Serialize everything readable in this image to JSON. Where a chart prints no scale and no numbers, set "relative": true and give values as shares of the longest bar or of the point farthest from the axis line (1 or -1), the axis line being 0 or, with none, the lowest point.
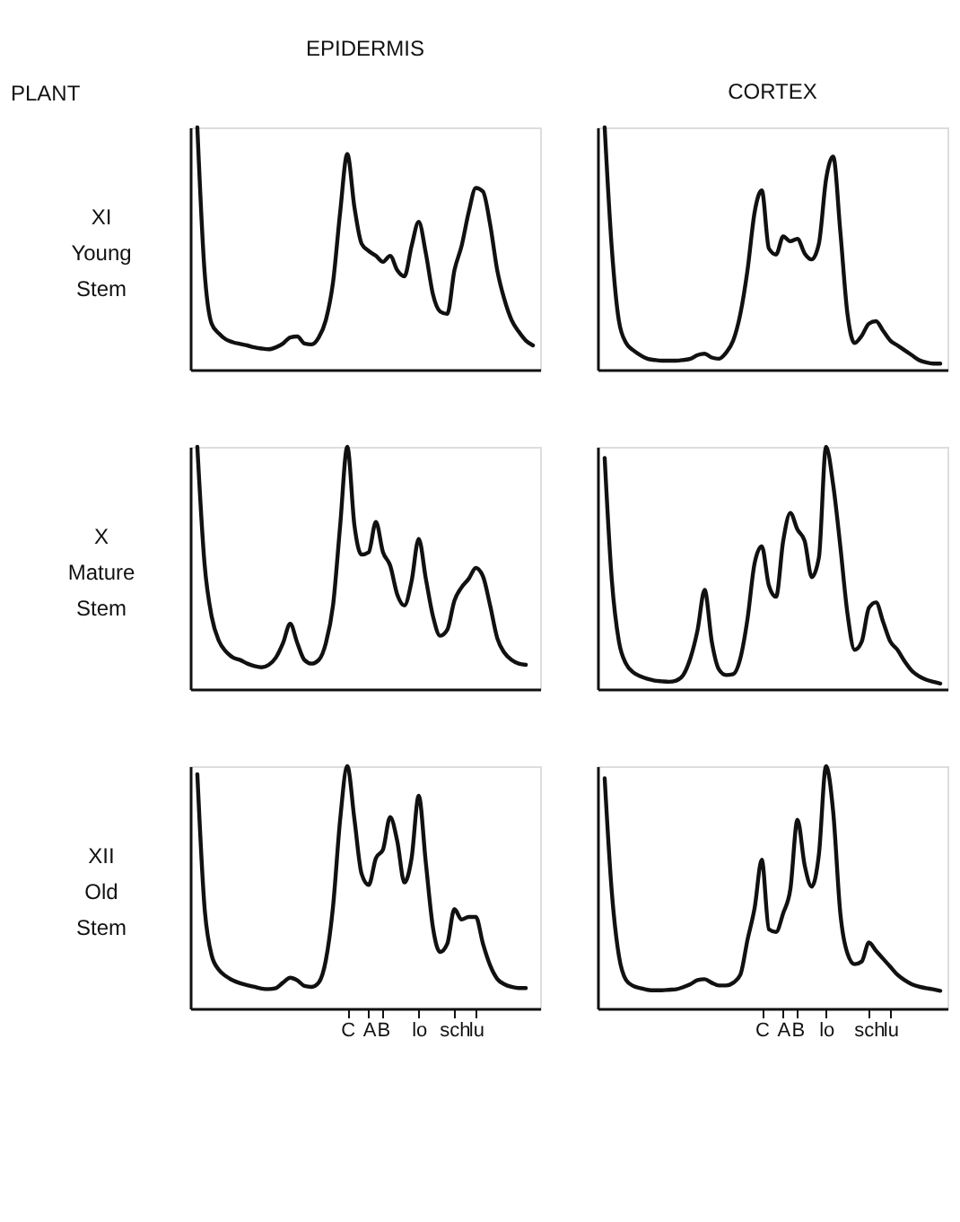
{
  "chart_data": [
    {
      "type": "line",
      "title": "EPIDERMIS",
      "ylabel": "XI\nYoung\nStem",
      "annotations": [
        "PLANT"
      ],
      "relative": true,
      "tick_labels": false,
      "categories": [
        null,
        null,
        null,
        null,
        null,
        null,
        null,
        null,
        null,
        null,
        null,
        null,
        null,
        null,
        null,
        null,
        null,
        null,
        null,
        null,
        null,
        null,
        null,
        null,
        null,
        null,
        null,
        null,
        null,
        null,
        null,
        null,
        null,
        null,
        null,
        null,
        null,
        null,
        null,
        null,
        null,
        null,
        null,
        null,
        null,
        null,
        null,
        null,
        null,
        null
      ],
      "series": [
        {
          "color": "#111111",
          "values": [
            null,
            1.0,
            0.41,
            0.19,
            0.15,
            0.125,
            0.113,
            0.106,
            0.1,
            0.092,
            0.087,
            0.084,
            0.092,
            0.108,
            0.133,
            0.137,
            0.108,
            0.104,
            0.133,
            0.205,
            0.36,
            0.65,
            0.89,
            0.67,
            0.52,
            0.49,
            0.47,
            0.445,
            0.47,
            0.41,
            0.385,
            0.51,
            0.61,
            0.48,
            0.31,
            0.24,
            0.23,
            0.41,
            0.51,
            0.65,
            0.75,
            0.735,
            0.6,
            0.41,
            0.29,
            0.205,
            0.157,
            0.12,
            0.1,
            null
          ]
        }
      ]
    },
    {
      "type": "line",
      "title": "CORTEX",
      "relative": true,
      "tick_labels": false,
      "categories": [
        null,
        null,
        null,
        null,
        null,
        null,
        null,
        null,
        null,
        null,
        null,
        null,
        null,
        null,
        null,
        null,
        null,
        null,
        null,
        null,
        null,
        null,
        null,
        null,
        null,
        null,
        null,
        null,
        null,
        null,
        null,
        null,
        null,
        null,
        null,
        null,
        null,
        null,
        null,
        null,
        null,
        null,
        null,
        null,
        null,
        null,
        null,
        null,
        null,
        null
      ],
      "series": [
        {
          "color": "#111111",
          "values": [
            null,
            1.0,
            0.5,
            0.2,
            0.11,
            0.08,
            0.06,
            0.045,
            0.04,
            0.037,
            0.037,
            0.037,
            0.04,
            0.045,
            0.06,
            0.066,
            0.05,
            0.045,
            0.07,
            0.12,
            0.23,
            0.41,
            0.65,
            0.74,
            0.5,
            0.475,
            0.55,
            0.53,
            0.54,
            0.48,
            0.455,
            0.52,
            0.785,
            0.88,
            0.57,
            0.23,
            0.11,
            0.14,
            0.19,
            0.2,
            0.16,
            0.12,
            0.1,
            0.08,
            0.06,
            0.04,
            0.03,
            0.025,
            0.025,
            null
          ]
        }
      ]
    },
    {
      "type": "line",
      "ylabel": "X\nMature\nStem",
      "relative": true,
      "tick_labels": false,
      "categories": [
        null,
        null,
        null,
        null,
        null,
        null,
        null,
        null,
        null,
        null,
        null,
        null,
        null,
        null,
        null,
        null,
        null,
        null,
        null,
        null,
        null,
        null,
        null,
        null,
        null,
        null,
        null,
        null,
        null,
        null,
        null,
        null,
        null,
        null,
        null,
        null,
        null,
        null,
        null,
        null,
        null,
        null,
        null,
        null,
        null,
        null,
        null,
        null,
        null,
        null
      ],
      "series": [
        {
          "color": "#111111",
          "values": [
            null,
            1.0,
            0.52,
            0.3,
            0.2,
            0.155,
            0.13,
            0.12,
            0.105,
            0.095,
            0.09,
            0.1,
            0.13,
            0.19,
            0.27,
            0.19,
            0.12,
            0.105,
            0.12,
            0.19,
            0.345,
            0.675,
            1.0,
            0.675,
            0.555,
            0.565,
            0.69,
            0.565,
            0.51,
            0.39,
            0.345,
            0.445,
            0.62,
            0.455,
            0.3,
            0.22,
            0.245,
            0.365,
            0.42,
            0.455,
            0.5,
            0.465,
            0.345,
            0.21,
            0.15,
            0.12,
            0.105,
            0.1,
            null,
            null
          ]
        }
      ]
    },
    {
      "type": "line",
      "relative": true,
      "tick_labels": false,
      "categories": [
        null,
        null,
        null,
        null,
        null,
        null,
        null,
        null,
        null,
        null,
        null,
        null,
        null,
        null,
        null,
        null,
        null,
        null,
        null,
        null,
        null,
        null,
        null,
        null,
        null,
        null,
        null,
        null,
        null,
        null,
        null,
        null,
        null,
        null,
        null,
        null,
        null,
        null,
        null,
        null,
        null,
        null,
        null,
        null,
        null,
        null,
        null,
        null,
        null,
        null
      ],
      "series": [
        {
          "color": "#111111",
          "values": [
            null,
            0.954,
            0.45,
            0.196,
            0.104,
            0.069,
            0.053,
            0.042,
            0.035,
            0.032,
            0.03,
            0.035,
            0.058,
            0.127,
            0.242,
            0.409,
            0.196,
            0.081,
            0.058,
            0.062,
            0.127,
            0.289,
            0.52,
            0.589,
            0.427,
            0.381,
            0.612,
            0.727,
            0.658,
            0.612,
            0.462,
            0.543,
            1.0,
            0.843,
            0.589,
            0.312,
            0.162,
            0.196,
            0.335,
            0.358,
            0.277,
            0.196,
            0.162,
            0.115,
            0.076,
            0.053,
            0.039,
            0.03,
            0.023,
            null
          ]
        }
      ]
    },
    {
      "type": "line",
      "ylabel": "XII\nOld\nStem",
      "relative": true,
      "tick_labels": "x",
      "categories": [
        null,
        null,
        null,
        null,
        null,
        null,
        null,
        null,
        null,
        null,
        null,
        null,
        null,
        null,
        null,
        null,
        null,
        null,
        null,
        null,
        null,
        null,
        "C",
        null,
        null,
        "A",
        null,
        "B",
        null,
        null,
        null,
        null,
        "lo",
        null,
        null,
        null,
        null,
        "sch",
        null,
        null,
        "lu",
        null,
        null,
        null,
        null,
        null,
        null,
        null,
        null,
        null
      ],
      "series": [
        {
          "color": "#111111",
          "values": [
            null,
            0.967,
            0.42,
            0.22,
            0.16,
            0.133,
            0.116,
            0.104,
            0.096,
            0.089,
            0.082,
            0.08,
            0.084,
            0.107,
            0.127,
            0.116,
            0.093,
            0.089,
            0.107,
            0.2,
            0.42,
            0.78,
            1.0,
            0.78,
            0.556,
            0.51,
            0.62,
            0.656,
            0.79,
            0.69,
            0.52,
            0.62,
            0.878,
            0.6,
            0.333,
            0.233,
            0.267,
            0.41,
            0.367,
            0.378,
            0.378,
            0.267,
            0.178,
            0.122,
            0.1,
            0.089,
            0.084,
            0.084,
            null,
            null
          ]
        }
      ]
    },
    {
      "type": "line",
      "relative": true,
      "tick_labels": "x",
      "categories": [
        null,
        null,
        null,
        null,
        null,
        null,
        null,
        null,
        null,
        null,
        null,
        null,
        null,
        null,
        null,
        null,
        null,
        null,
        null,
        null,
        null,
        null,
        null,
        "C",
        null,
        null,
        "A",
        null,
        "B",
        null,
        null,
        null,
        "lo",
        null,
        null,
        null,
        null,
        null,
        "sch",
        null,
        null,
        "lu",
        null,
        null,
        null,
        null,
        null,
        null,
        null,
        null
      ],
      "series": [
        {
          "color": "#111111",
          "values": [
            null,
            0.95,
            0.48,
            0.216,
            0.117,
            0.093,
            0.084,
            0.077,
            0.075,
            0.075,
            0.077,
            0.079,
            0.088,
            0.1,
            0.117,
            0.121,
            0.106,
            0.095,
            0.095,
            0.106,
            0.139,
            0.283,
            0.415,
            0.614,
            0.327,
            0.316,
            0.393,
            0.492,
            0.779,
            0.592,
            0.503,
            0.636,
            1.0,
            0.812,
            0.393,
            0.227,
            0.183,
            0.194,
            0.272,
            0.238,
            0.205,
            0.172,
            0.139,
            0.117,
            0.1,
            0.09,
            0.084,
            0.079,
            0.073,
            null
          ]
        }
      ]
    }
  ]
}
